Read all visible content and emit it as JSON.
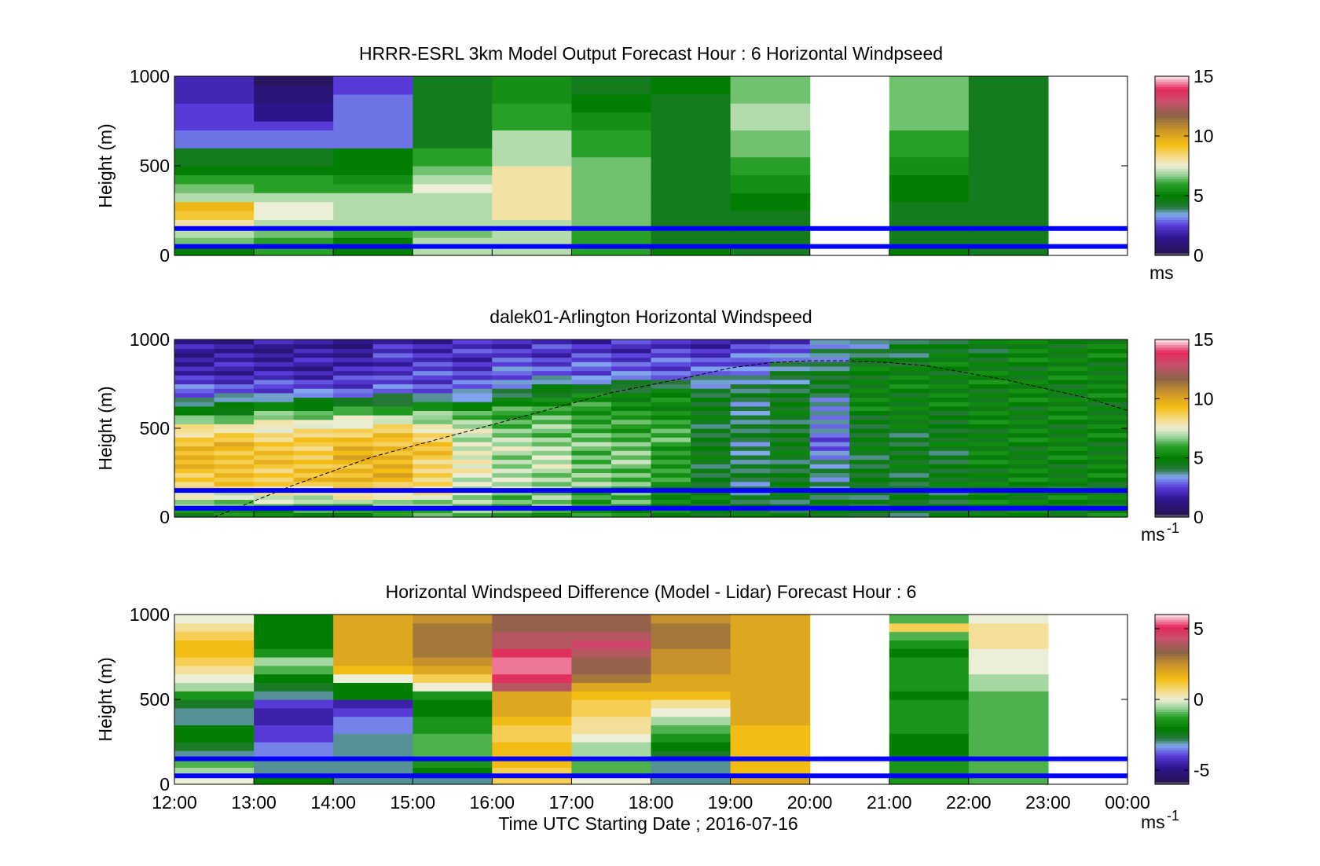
{
  "figure": {
    "xlabel": "Time UTC  Starting Date ; 2016-07-16",
    "x_ticks": [
      "12:00",
      "13:00",
      "14:00",
      "15:00",
      "16:00",
      "17:00",
      "18:00",
      "19:00",
      "20:00",
      "21:00",
      "22:00",
      "23:00",
      "00:00"
    ],
    "ylabel": "Height (m)",
    "y_ticks": [
      "0",
      "500",
      "1000"
    ],
    "blue_line_heights_m": [
      50,
      150
    ],
    "blue_line_color": "#0000ff"
  },
  "chart_data": [
    {
      "type": "heatmap",
      "title": "HRRR-ESRL 3km Model Output   Forecast Hour : 6 Horizontal Windpseed",
      "ylabel": "Height (m)",
      "ylim": [
        0,
        1000
      ],
      "x_range_hours": [
        12,
        24
      ],
      "colorbar": {
        "ticks": [
          "0",
          "5",
          "10",
          "15"
        ],
        "range": [
          0,
          15
        ],
        "unit": "ms"
      },
      "horizontal_lines_m": [
        50,
        150
      ],
      "column_start_hours": [
        12,
        13,
        14,
        15,
        16,
        17,
        18,
        19,
        20,
        21,
        22,
        23
      ],
      "row_heights_m": [
        25,
        75,
        125,
        175,
        225,
        275,
        325,
        375,
        425,
        475,
        525,
        575,
        625,
        675,
        725,
        775,
        825,
        875,
        925,
        975
      ],
      "values": [
        [
          5,
          6,
          5,
          7,
          7,
          6,
          5,
          4.5,
          null,
          5,
          4.5,
          null
        ],
        [
          6.5,
          6,
          5,
          7,
          7,
          6,
          4.5,
          4.5,
          null,
          4.5,
          4.5,
          null
        ],
        [
          7,
          6.5,
          6,
          6.5,
          7,
          6,
          4.5,
          4.5,
          null,
          4.5,
          4.5,
          null
        ],
        [
          8,
          7,
          7,
          7,
          7,
          6.5,
          4.5,
          4.5,
          null,
          4.5,
          4.5,
          null
        ],
        [
          9,
          7.5,
          7,
          7,
          8,
          6.5,
          4.5,
          4.5,
          null,
          4.5,
          4.5,
          null
        ],
        [
          9.5,
          7.5,
          7,
          7,
          8,
          6.5,
          4.5,
          5,
          null,
          4.5,
          4.5,
          null
        ],
        [
          7,
          7,
          7,
          7,
          8,
          6.5,
          4.5,
          5,
          null,
          5,
          4.5,
          null
        ],
        [
          6.5,
          6,
          6,
          7.5,
          8,
          6.5,
          4.5,
          5.5,
          null,
          5,
          4.5,
          null
        ],
        [
          6,
          6,
          5.5,
          7,
          8,
          6.5,
          4.5,
          5.5,
          null,
          5,
          4.5,
          null
        ],
        [
          5,
          5,
          5,
          6.5,
          8,
          6.5,
          4.5,
          6,
          null,
          5.5,
          4.5,
          null
        ],
        [
          4.5,
          4.5,
          5,
          6,
          7,
          6.5,
          4.5,
          6,
          null,
          5.5,
          4.5,
          null
        ],
        [
          4.5,
          4.5,
          5,
          6,
          7,
          6,
          4.5,
          6.5,
          null,
          6,
          4.5,
          null
        ],
        [
          3,
          3,
          3,
          4.5,
          7,
          6,
          4.5,
          6.5,
          null,
          6,
          4.5,
          null
        ],
        [
          3,
          3,
          3,
          4.5,
          7,
          6,
          4.5,
          6.5,
          null,
          6,
          4.5,
          null
        ],
        [
          2.5,
          2.5,
          3,
          4.5,
          6,
          5.5,
          4.5,
          7,
          null,
          6.5,
          4.5,
          null
        ],
        [
          2.5,
          1.5,
          3,
          4.5,
          6,
          5.5,
          4.5,
          7,
          null,
          6.5,
          4.5,
          null
        ],
        [
          2.5,
          1.5,
          3,
          4.5,
          6,
          5,
          4.5,
          7,
          null,
          6.5,
          4.5,
          null
        ],
        [
          2,
          1,
          3,
          4.5,
          5.5,
          5,
          4.5,
          6.5,
          null,
          6.5,
          4.5,
          null
        ],
        [
          2,
          1,
          2.5,
          4.5,
          5.5,
          4.5,
          5,
          6.5,
          null,
          6.5,
          4.5,
          null
        ],
        [
          2,
          0.5,
          2.5,
          4.5,
          5.5,
          4.5,
          5,
          6.5,
          null,
          6.5,
          4.5,
          null
        ]
      ]
    },
    {
      "type": "heatmap",
      "title": "dalek01-Arlington  Horizontal Windspeed",
      "ylabel": "Height (m)",
      "ylim": [
        0,
        1000
      ],
      "x_range_hours": [
        12,
        24
      ],
      "colorbar": {
        "ticks": [
          "0",
          "5",
          "10",
          "15"
        ],
        "range": [
          0,
          15
        ],
        "unit": "ms",
        "unit_exponent": "-1"
      },
      "horizontal_lines_m": [
        50,
        150
      ],
      "profile_hours": [
        12,
        12.5,
        13,
        13.5,
        14,
        14.5,
        15,
        15.5,
        16,
        16.5,
        17,
        17.5,
        18,
        18.5,
        19,
        19.5,
        20,
        20.5,
        21,
        21.5,
        22,
        22.5,
        23,
        23.5
      ],
      "profile_heights_m": [
        0,
        200,
        400,
        500,
        600,
        700,
        800,
        1000
      ],
      "profile_values": [
        [
          5,
          9,
          9.5,
          8,
          5,
          3,
          2,
          1.5
        ],
        [
          5,
          9,
          9.5,
          8,
          5,
          3,
          2,
          1.5
        ],
        [
          5,
          9,
          9,
          8,
          6,
          3,
          2,
          1.5
        ],
        [
          5,
          9,
          9,
          8,
          6,
          3,
          2,
          1.5
        ],
        [
          5,
          9.5,
          9.5,
          8.5,
          6,
          3,
          2,
          1.5
        ],
        [
          5,
          9.5,
          9.5,
          8.5,
          6,
          3,
          2.5,
          2
        ],
        [
          6,
          8.5,
          9,
          8,
          6,
          3,
          2.5,
          2
        ],
        [
          6,
          7.5,
          7.5,
          7,
          6,
          3,
          2.5,
          2
        ],
        [
          6,
          7,
          7,
          6.5,
          6,
          4,
          3,
          2
        ],
        [
          6,
          7,
          7,
          6.5,
          6,
          5,
          3,
          2
        ],
        [
          5.5,
          6.5,
          6.5,
          6,
          6,
          5,
          3,
          2
        ],
        [
          5.5,
          6.5,
          6.5,
          6,
          5.5,
          5,
          3,
          2
        ],
        [
          5,
          5.5,
          6,
          6,
          5.5,
          5,
          3,
          2
        ],
        [
          5,
          4.5,
          4.5,
          4.5,
          4.5,
          4.5,
          3,
          2
        ],
        [
          4.5,
          4,
          4,
          4,
          4,
          4,
          3.5,
          2
        ],
        [
          4.5,
          4.5,
          4.5,
          4.5,
          4.5,
          4.5,
          4,
          2.5
        ],
        [
          4.5,
          4,
          3,
          3,
          3.5,
          4,
          4.5,
          3
        ],
        [
          4.5,
          4.5,
          4.5,
          4.5,
          5,
          5,
          5,
          3.5
        ],
        [
          4.5,
          4.5,
          4.5,
          4.5,
          5,
          5,
          5,
          4
        ],
        [
          4.5,
          4.5,
          4.5,
          4.5,
          5,
          5,
          5,
          4.5
        ],
        [
          5,
          5,
          5,
          5,
          5,
          5,
          5,
          4.5
        ],
        [
          5,
          5,
          5,
          5,
          5,
          5,
          5,
          5
        ],
        [
          5,
          5,
          5,
          5,
          5,
          5,
          5,
          5
        ],
        [
          5,
          5,
          5,
          5,
          5,
          5,
          5,
          5
        ]
      ],
      "dashed_curve": {
        "hours": [
          12.5,
          13.5,
          14.5,
          15.5,
          16.5,
          17.5,
          18.5,
          19,
          19.5,
          20,
          20.5,
          21,
          21.5,
          22,
          22.5,
          23,
          23.5,
          24
        ],
        "heights_m": [
          0,
          180,
          340,
          460,
          580,
          700,
          790,
          840,
          870,
          880,
          880,
          870,
          850,
          810,
          770,
          720,
          670,
          600
        ]
      }
    },
    {
      "type": "heatmap",
      "title": "Horizontal Windspeed Difference (Model - Lidar) Forecast Hour : 6",
      "ylabel": "Height (m)",
      "ylim": [
        0,
        1000
      ],
      "x_range_hours": [
        12,
        24
      ],
      "colorbar": {
        "ticks": [
          "-5",
          "0",
          "5"
        ],
        "range": [
          -6,
          6
        ],
        "unit": "ms",
        "unit_exponent": "-1"
      },
      "horizontal_lines_m": [
        50,
        150
      ],
      "column_start_hours": [
        12,
        13,
        14,
        15,
        16,
        17,
        18,
        19,
        20,
        21,
        22,
        23
      ],
      "row_heights_m": [
        25,
        75,
        125,
        175,
        225,
        275,
        325,
        375,
        425,
        475,
        525,
        575,
        625,
        675,
        725,
        775,
        825,
        875,
        925,
        975
      ],
      "values": [
        [
          0,
          -2,
          -3,
          -3,
          1,
          0,
          -3,
          2,
          null,
          -1.5,
          -1,
          null
        ],
        [
          -0.5,
          -3,
          -3,
          -2,
          1,
          -1,
          -3,
          1.5,
          null,
          -1.5,
          -1,
          null
        ],
        [
          -1,
          -3,
          -3,
          -1.5,
          1.5,
          -1,
          -3,
          1.5,
          null,
          -1.5,
          -1,
          null
        ],
        [
          -3,
          -3.5,
          -3,
          -1,
          1.5,
          -0.5,
          -2.5,
          1.5,
          null,
          -2,
          -1,
          null
        ],
        [
          -2.5,
          -3.5,
          -3,
          -1,
          1.5,
          -0.5,
          -2,
          1.5,
          null,
          -2,
          -1,
          null
        ],
        [
          -2,
          -4,
          -3,
          -1,
          1,
          0,
          -1.5,
          1.5,
          null,
          -2,
          -1,
          null
        ],
        [
          -2,
          -4,
          -3.5,
          -1.5,
          1,
          0.5,
          -1,
          1.5,
          null,
          -1.5,
          -1,
          null
        ],
        [
          -3,
          -4.5,
          -3.5,
          -1.5,
          1.5,
          0.5,
          -0.5,
          2,
          null,
          -1.5,
          -1,
          null
        ],
        [
          -3,
          -4.5,
          -4,
          -2,
          2,
          1,
          0,
          2,
          null,
          -1.5,
          -1,
          null
        ],
        [
          -2.5,
          -4,
          -4.5,
          -2,
          2,
          1,
          0.5,
          2,
          null,
          -1.5,
          -1,
          null
        ],
        [
          -1.5,
          -3,
          -2,
          -1.5,
          2,
          1.5,
          1.5,
          2,
          null,
          -2,
          -1,
          null
        ],
        [
          -0.5,
          -2.5,
          -2,
          0,
          4,
          2,
          2,
          2,
          null,
          -1.5,
          -0.5,
          null
        ],
        [
          0,
          -2,
          0,
          1,
          5,
          3,
          2,
          2,
          null,
          -1.5,
          -0.5,
          null
        ],
        [
          0.5,
          -1,
          1.5,
          2,
          5.5,
          3.5,
          2.5,
          2,
          null,
          -1.5,
          0,
          null
        ],
        [
          1,
          -0.5,
          2,
          2.5,
          5.5,
          3.5,
          2.5,
          2,
          null,
          -1.5,
          0,
          null
        ],
        [
          1.5,
          -1.5,
          2,
          3,
          5,
          4,
          2.5,
          2,
          null,
          -2,
          0,
          null
        ],
        [
          1.5,
          -2,
          2,
          3,
          4,
          4.5,
          3,
          2,
          null,
          -1.5,
          0.5,
          null
        ],
        [
          1,
          -2,
          2,
          3,
          4,
          4,
          3,
          2,
          null,
          -1,
          0.5,
          null
        ],
        [
          0.5,
          -2,
          2,
          3,
          3.5,
          3.5,
          3,
          2,
          null,
          1,
          0.5,
          null
        ],
        [
          0,
          -2,
          2,
          2.5,
          3.5,
          3.5,
          2.5,
          2,
          null,
          -1,
          0,
          null
        ]
      ]
    }
  ]
}
